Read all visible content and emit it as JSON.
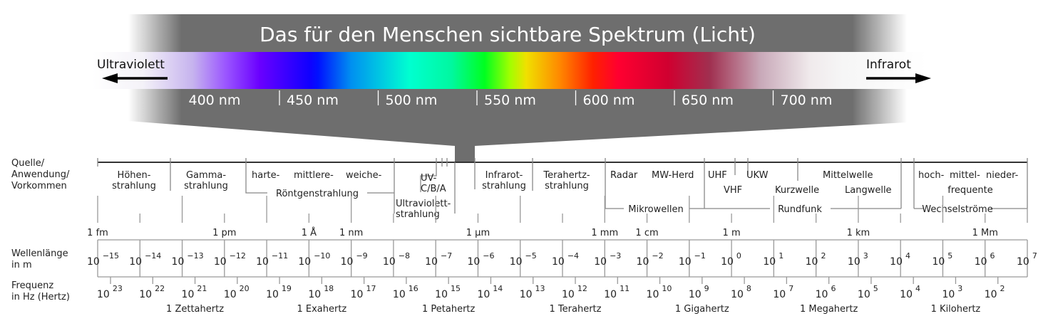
{
  "banner": {
    "title": "Das für den Menschen sichtbare Spektrum (Licht)",
    "uv_label": "Ultraviolett",
    "ir_label": "Infrarot",
    "nm_ticks": [
      "400 nm",
      "450 nm",
      "500 nm",
      "550 nm",
      "600 nm",
      "650 nm",
      "700 nm"
    ],
    "colors": {
      "band_gray": "#6e6e6e",
      "text": "#ffffff"
    }
  },
  "row_labels": {
    "source": [
      "Quelle/",
      "Anwendung/",
      "Vorkommen"
    ],
    "wavelength": [
      "Wellenlänge",
      "in m"
    ],
    "frequency": [
      "Frequenz",
      "in Hz (Hertz)"
    ]
  },
  "categories": {
    "hoehen": [
      "Höhen-",
      "strahlung"
    ],
    "gamma": [
      "Gamma-",
      "strahlung"
    ],
    "roentgen_sub": [
      "harte-",
      "mittlere-",
      "weiche-"
    ],
    "roentgen": "Röntgenstrahlung",
    "uv_sub": [
      "UV-",
      "C/B/A"
    ],
    "uv": [
      "Ultraviolett-",
      "strahlung"
    ],
    "infrarot": [
      "Infrarot-",
      "strahlung"
    ],
    "terahertz": [
      "Terahertz-",
      "strahlung"
    ],
    "radar": "Radar",
    "mw_herd": "MW-Herd",
    "mikrowellen": "Mikrowellen",
    "uhf": "UHF",
    "vhf": "VHF",
    "ukw": "UKW",
    "kurzwelle": "Kurzwelle",
    "mittelwelle": "Mittelwelle",
    "langwelle": "Langwelle",
    "rundfunk": "Rundfunk",
    "wechsel_sub": [
      "hoch-",
      "mittel-",
      "nieder-",
      "frequente"
    ],
    "wechselstroeme": "Wechselströme"
  },
  "wavelength_units": [
    {
      "label": "1 fm",
      "exp": -15
    },
    {
      "label": "1 pm",
      "exp": -12
    },
    {
      "label": "1 Å",
      "exp": -10
    },
    {
      "label": "1 nm",
      "exp": -9
    },
    {
      "label": "1 µm",
      "exp": -6
    },
    {
      "label": "1 mm",
      "exp": -3
    },
    {
      "label": "1 cm",
      "exp": -2
    },
    {
      "label": "1 m",
      "exp": 0
    },
    {
      "label": "1 km",
      "exp": 3
    },
    {
      "label": "1 Mm",
      "exp": 6
    }
  ],
  "wavelength_exponents": [
    -15,
    -14,
    -13,
    -12,
    -11,
    -10,
    -9,
    -8,
    -7,
    -6,
    -5,
    -4,
    -3,
    -2,
    -1,
    0,
    1,
    2,
    3,
    4,
    5,
    6,
    7
  ],
  "frequency_exponents": [
    23,
    22,
    21,
    20,
    19,
    18,
    17,
    16,
    15,
    14,
    13,
    12,
    11,
    10,
    9,
    8,
    7,
    6,
    5,
    4,
    3,
    2
  ],
  "frequency_units": [
    {
      "label": "1 Zettahertz",
      "exp": 21
    },
    {
      "label": "1 Exahertz",
      "exp": 18
    },
    {
      "label": "1 Petahertz",
      "exp": 15
    },
    {
      "label": "1 Terahertz",
      "exp": 12
    },
    {
      "label": "1 Gigahertz",
      "exp": 9
    },
    {
      "label": "1 Megahertz",
      "exp": 6
    },
    {
      "label": "1 Kilohertz",
      "exp": 3
    }
  ],
  "base": "10"
}
